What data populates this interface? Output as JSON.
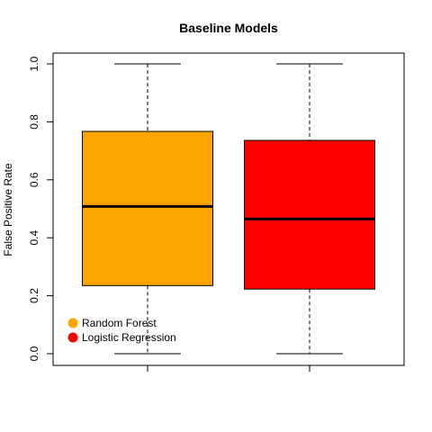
{
  "chart_data": {
    "type": "boxplot",
    "title": "Baseline Models",
    "xlabel": "",
    "ylabel": "False Positive Rate",
    "ylim": [
      0.0,
      1.0
    ],
    "yticks": [
      0.0,
      0.2,
      0.4,
      0.6,
      0.8,
      1.0
    ],
    "ytick_labels": [
      "0.0",
      "0.2",
      "0.4",
      "0.6",
      "0.8",
      "1.0"
    ],
    "grid": false,
    "legend_position": "bottom-left",
    "series": [
      {
        "name": "Random Forest",
        "color": "#ffa500",
        "min": 0.0,
        "q1": 0.235,
        "median": 0.508,
        "q3": 0.767,
        "max": 1.0
      },
      {
        "name": "Logistic Regression",
        "color": "#ff0000",
        "min": 0.0,
        "q1": 0.223,
        "median": 0.465,
        "q3": 0.736,
        "max": 1.0
      }
    ]
  }
}
